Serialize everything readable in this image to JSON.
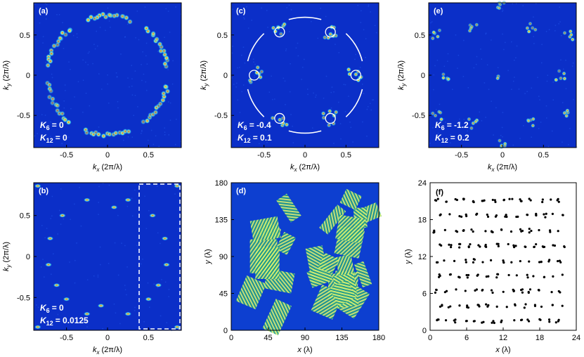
{
  "colors": {
    "field": "#0b2fc8",
    "hot": "#ffe94a",
    "warm": "#2ed0ff",
    "red": "#d42b1c"
  },
  "axes": {
    "kx_label": "(2π/λ)",
    "ky_label": "(2π/λ)",
    "kx_sym": "k",
    "kx_sub": "x",
    "ky_sym": "k",
    "ky_sub": "y",
    "x_sym": "x",
    "x_unit": "(λ)",
    "y_sym": "y",
    "y_unit": "(λ)"
  },
  "k_ticks": {
    "values": [
      -0.5,
      0,
      0.5
    ],
    "labels": [
      "-0.5",
      "0",
      "0.5"
    ]
  },
  "d_ticks": {
    "values": [
      0,
      45,
      90,
      135,
      180
    ],
    "labels": [
      "0",
      "45",
      "90",
      "135",
      "180"
    ]
  },
  "f_ticks": {
    "values": [
      0,
      6,
      12,
      18,
      24
    ],
    "labels": [
      "0",
      "6",
      "12",
      "18",
      "24"
    ]
  },
  "panels": {
    "a": {
      "label": "(a)",
      "k6": "K6 = 0",
      "k12": "K12 = 0",
      "k6_val": "= 0",
      "k12_val": "= 0"
    },
    "b": {
      "label": "(b)",
      "k6_val": "= 0",
      "k12_val": "= 0.0125"
    },
    "c": {
      "label": "(c)",
      "k6_val": "= -0.4",
      "k12_val": "= 0.1"
    },
    "d": {
      "label": "(d)"
    },
    "e": {
      "label": "(e)",
      "k6_val": "= -1.2",
      "k12_val": "= 0.2"
    },
    "f": {
      "label": "(f)"
    }
  },
  "param_sym": {
    "k6": "K",
    "k6_sub": "6",
    "k12": "K",
    "k12_sub": "12"
  }
}
